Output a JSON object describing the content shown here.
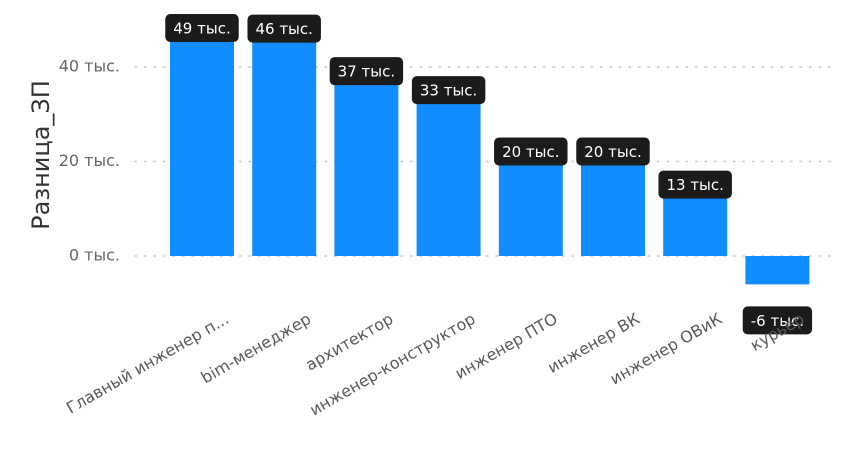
{
  "chart_data": {
    "type": "bar",
    "ylabel": "Разница_ЗП",
    "categories": [
      "Главный инженер п...",
      "bim-менеджер",
      "архитектор",
      "инженер-конструктор",
      "инженер ПТО",
      "инженер ВК",
      "инженер ОВиК",
      "курьер"
    ],
    "values": [
      49000,
      46000,
      37000,
      33000,
      20000,
      20000,
      13000,
      -6000
    ],
    "data_labels": [
      "49 тыс.",
      "46 тыс.",
      "37 тыс.",
      "33 тыс.",
      "20 тыс.",
      "20 тыс.",
      "13 тыс.",
      "-6 тыс."
    ],
    "yticks": [
      0,
      20000,
      40000
    ],
    "ytick_labels": [
      "0 тыс.",
      "20 тыс.",
      "40 тыс."
    ],
    "grid": true,
    "colors": {
      "bar": "#118DFF",
      "label_bg": "#1b1b1b",
      "label_text": "#ffffff"
    }
  }
}
